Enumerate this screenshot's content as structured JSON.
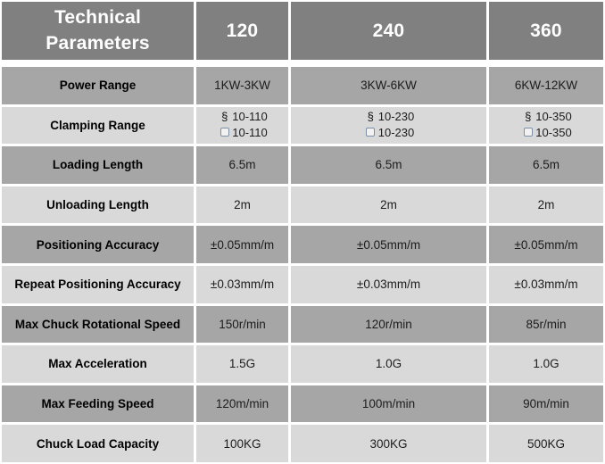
{
  "table": {
    "header": {
      "title": "Technical Parameters",
      "models": [
        "120",
        "240",
        "360"
      ]
    },
    "icons": {
      "round_tube_glyph": "§"
    },
    "colors": {
      "header_bg": "#808080",
      "header_text": "#ffffff",
      "row_dark_bg": "#a6a6a6",
      "row_light_bg": "#d9d9d9",
      "body_text": "#1c1c1c"
    },
    "rows": [
      {
        "label": "Power Range",
        "values": [
          "1KW-3KW",
          "3KW-6KW",
          "6KW-12KW"
        ]
      },
      {
        "label": "Clamping Range",
        "round": [
          "10-110",
          "10-230",
          "10-350"
        ],
        "square": [
          "10-110",
          "10-230",
          "10-350"
        ]
      },
      {
        "label": "Loading Length",
        "values": [
          "6.5m",
          "6.5m",
          "6.5m"
        ]
      },
      {
        "label": "Unloading Length",
        "values": [
          "2m",
          "2m",
          "2m"
        ]
      },
      {
        "label": "Positioning Accuracy",
        "values": [
          "±0.05mm/m",
          "±0.05mm/m",
          "±0.05mm/m"
        ]
      },
      {
        "label": "Repeat Positioning Accuracy",
        "values": [
          "±0.03mm/m",
          "±0.03mm/m",
          "±0.03mm/m"
        ]
      },
      {
        "label": "Max Chuck Rotational Speed",
        "values": [
          "150r/min",
          "120r/min",
          "85r/min"
        ]
      },
      {
        "label": "Max Acceleration",
        "values": [
          "1.5G",
          "1.0G",
          "1.0G"
        ]
      },
      {
        "label": "Max Feeding Speed",
        "values": [
          "120m/min",
          "100m/min",
          "90m/min"
        ]
      },
      {
        "label": "Chuck Load Capacity",
        "values": [
          "100KG",
          "300KG",
          "500KG"
        ]
      }
    ]
  }
}
